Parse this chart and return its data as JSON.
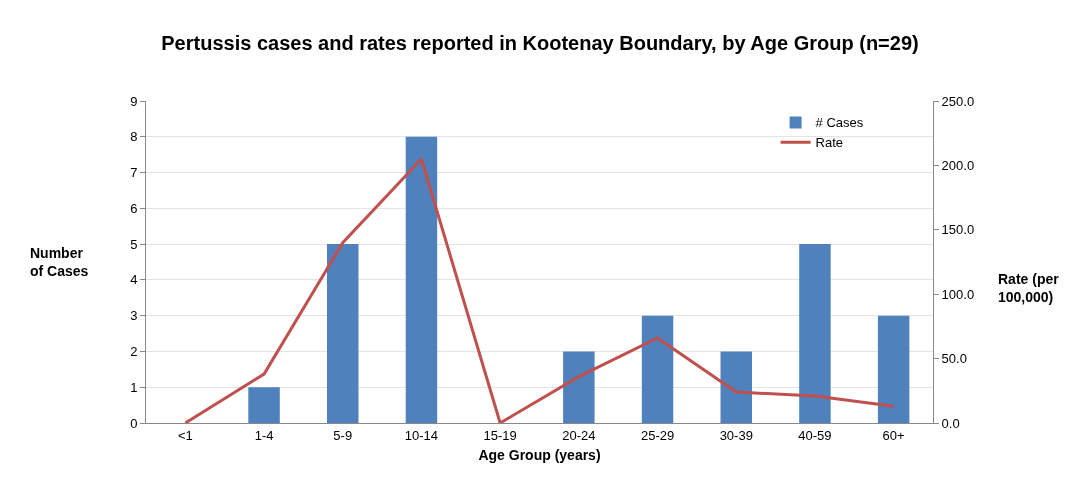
{
  "chart_data": {
    "type": "bar",
    "title": "Pertussis cases and rates reported in Kootenay Boundary, by Age Group (n=29)",
    "xlabel": "Age Group (years)",
    "ylabel": "Number of Cases",
    "y2label": "Rate (per 100,000)",
    "categories": [
      "<1",
      "1-4",
      "5-9",
      "10-14",
      "15-19",
      "20-24",
      "25-29",
      "30-39",
      "40-59",
      "60+"
    ],
    "series": [
      {
        "name": "# Cases",
        "color": "#4f81bd",
        "values": [
          0,
          1,
          5,
          8,
          0,
          2,
          3,
          2,
          5,
          3
        ]
      },
      {
        "name": "Rate",
        "type": "line",
        "axis": "y2",
        "color": "#c0504d",
        "values": [
          0,
          38,
          140,
          205,
          0,
          36,
          66,
          24,
          21,
          13
        ]
      }
    ],
    "ylim": [
      0,
      9
    ],
    "yticks": [
      0,
      1,
      2,
      3,
      4,
      5,
      6,
      7,
      8,
      9
    ],
    "y2lim": [
      0,
      250
    ],
    "y2ticks": [
      {
        "value": 0,
        "label": "0.0"
      },
      {
        "value": 50,
        "label": "50.0"
      },
      {
        "value": 100,
        "label": "100.0"
      },
      {
        "value": 150,
        "label": "150.0"
      },
      {
        "value": 200,
        "label": "200.0"
      },
      {
        "value": 250,
        "label": "250.0"
      }
    ],
    "grid": "y",
    "legend": "top right",
    "marker": "none",
    "line_style": "solid"
  }
}
